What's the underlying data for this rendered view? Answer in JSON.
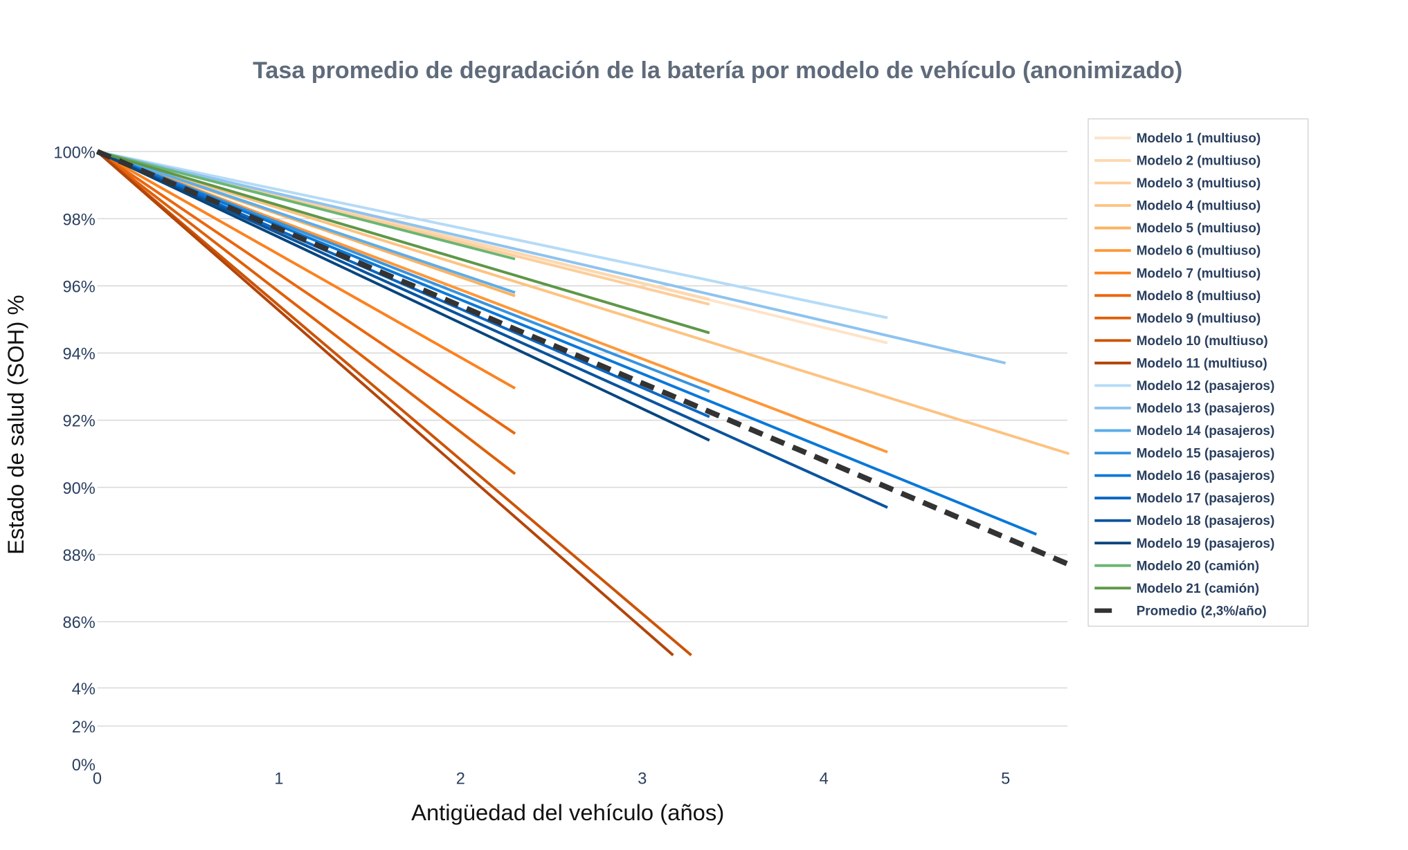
{
  "chart_data": {
    "type": "line",
    "title": "Tasa promedio de degradación de la batería por modelo de vehículo (anonimizado)",
    "xlabel": "Antigüedad del vehículo (años)",
    "ylabel": "Estado de salud (SOH) %",
    "xlim": [
      0,
      5.35
    ],
    "ylim": [
      0,
      100
    ],
    "y_axis_break": "between 4% and 86%",
    "x_ticks": [
      "0",
      "1",
      "2",
      "3",
      "4",
      "5"
    ],
    "x_tick_values": [
      0,
      1,
      2,
      3,
      4,
      5
    ],
    "y_ticks": [
      "100%",
      "98%",
      "96%",
      "94%",
      "92%",
      "90%",
      "88%",
      "86%",
      "4%",
      "2%",
      "0%"
    ],
    "y_tick_values": [
      100,
      98,
      96,
      94,
      92,
      90,
      88,
      86,
      4,
      2,
      0
    ],
    "grid": true,
    "legend_position": "right",
    "series": [
      {
        "name": "Modelo 1 (multiuso)",
        "color": "#fde3c8",
        "points": [
          [
            0,
            100
          ],
          [
            4.35,
            94.3
          ]
        ]
      },
      {
        "name": "Modelo 2 (multiuso)",
        "color": "#fdd8b0",
        "points": [
          [
            0,
            100
          ],
          [
            3.37,
            95.6
          ]
        ]
      },
      {
        "name": "Modelo 3 (multiuso)",
        "color": "#fdcd9a",
        "points": [
          [
            0,
            100
          ],
          [
            3.37,
            95.45
          ]
        ]
      },
      {
        "name": "Modelo 4 (multiuso)",
        "color": "#fdc382",
        "points": [
          [
            0,
            100
          ],
          [
            5.35,
            91.0
          ]
        ]
      },
      {
        "name": "Modelo 5 (multiuso)",
        "color": "#fdb262",
        "points": [
          [
            0,
            100
          ],
          [
            2.3,
            95.7
          ]
        ]
      },
      {
        "name": "Modelo 6 (multiuso)",
        "color": "#fd983a",
        "points": [
          [
            0,
            100
          ],
          [
            4.35,
            91.05
          ]
        ]
      },
      {
        "name": "Modelo 7 (multiuso)",
        "color": "#fb8220",
        "points": [
          [
            0,
            100
          ],
          [
            2.3,
            92.95
          ]
        ]
      },
      {
        "name": "Modelo 8 (multiuso)",
        "color": "#ea670f",
        "points": [
          [
            0,
            100
          ],
          [
            2.3,
            91.6
          ]
        ]
      },
      {
        "name": "Modelo 9 (multiuso)",
        "color": "#de600a",
        "points": [
          [
            0,
            100
          ],
          [
            2.3,
            90.4
          ]
        ]
      },
      {
        "name": "Modelo 10 (multiuso)",
        "color": "#cc5408",
        "points": [
          [
            0,
            100
          ],
          [
            3.27,
            85.0
          ]
        ]
      },
      {
        "name": "Modelo 11 (multiuso)",
        "color": "#b3450a",
        "points": [
          [
            0,
            100
          ],
          [
            3.17,
            85.0
          ]
        ]
      },
      {
        "name": "Modelo 12 (pasajeros)",
        "color": "#b5dbf7",
        "points": [
          [
            0,
            100
          ],
          [
            4.35,
            95.05
          ]
        ]
      },
      {
        "name": "Modelo 13 (pasajeros)",
        "color": "#8ec3ef",
        "points": [
          [
            0,
            100
          ],
          [
            5.0,
            93.7
          ]
        ]
      },
      {
        "name": "Modelo 14 (pasajeros)",
        "color": "#5caee9",
        "points": [
          [
            0,
            100
          ],
          [
            2.3,
            95.8
          ]
        ]
      },
      {
        "name": "Modelo 15 (pasajeros)",
        "color": "#3893df",
        "points": [
          [
            0,
            100
          ],
          [
            3.37,
            92.85
          ]
        ]
      },
      {
        "name": "Modelo 16 (pasajeros)",
        "color": "#0a78d8",
        "points": [
          [
            0,
            100
          ],
          [
            5.17,
            88.6
          ]
        ]
      },
      {
        "name": "Modelo 17 (pasajeros)",
        "color": "#0c67c2",
        "points": [
          [
            0,
            100
          ],
          [
            3.37,
            92.1
          ]
        ]
      },
      {
        "name": "Modelo 18 (pasajeros)",
        "color": "#0a549e",
        "points": [
          [
            0,
            100
          ],
          [
            4.35,
            89.4
          ]
        ]
      },
      {
        "name": "Modelo 19 (pasajeros)",
        "color": "#08457e",
        "points": [
          [
            0,
            100
          ],
          [
            3.37,
            91.4
          ]
        ]
      },
      {
        "name": "Modelo 20 (camión)",
        "color": "#6ab674",
        "points": [
          [
            0,
            100
          ],
          [
            2.3,
            96.8
          ]
        ]
      },
      {
        "name": "Modelo 21 (camión)",
        "color": "#5e9748",
        "points": [
          [
            0,
            100
          ],
          [
            3.37,
            94.6
          ]
        ]
      },
      {
        "name": "Promedio (2,3%/año)",
        "color": "#333333",
        "dashed": true,
        "points": [
          [
            0,
            100
          ],
          [
            5.35,
            87.7
          ]
        ]
      }
    ]
  }
}
